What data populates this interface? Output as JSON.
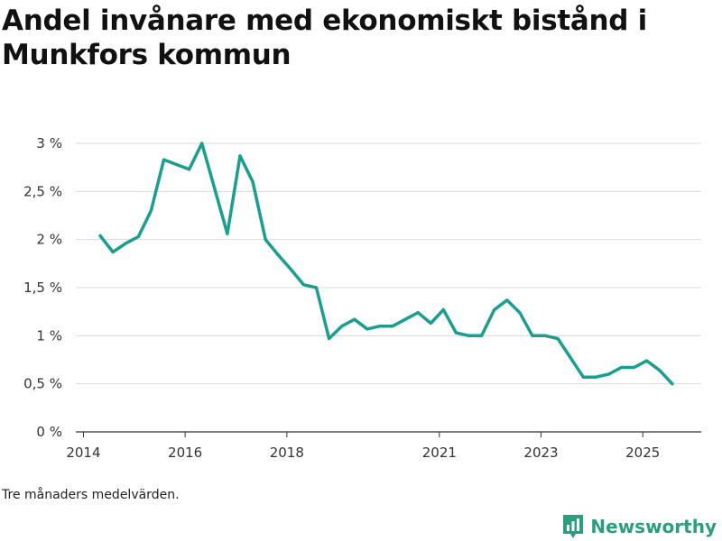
{
  "title": "Andel invånare med ekonomiskt bistånd i Munkfors kommun",
  "footnote": "Tre månaders medelvärden.",
  "brand": {
    "name": "Newsworthy",
    "icon": "newsworthy-logo-icon",
    "color": "#2a9f7f"
  },
  "colors": {
    "line": "#1a9e8f",
    "grid": "#d9d9d9",
    "axis": "#333333",
    "tick_text": "#333333"
  },
  "chart_data": {
    "type": "line",
    "title": "Andel invånare med ekonomiskt bistånd i Munkfors kommun",
    "xlabel": "",
    "ylabel": "",
    "xlim": [
      2013.85,
      2026.15
    ],
    "ylim": [
      0,
      3
    ],
    "grid": true,
    "y_ticks": [
      {
        "value": 0,
        "label": "0 %"
      },
      {
        "value": 0.5,
        "label": "0,5 %"
      },
      {
        "value": 1,
        "label": "1 %"
      },
      {
        "value": 1.5,
        "label": "1,5 %"
      },
      {
        "value": 2,
        "label": "2 %"
      },
      {
        "value": 2.5,
        "label": "2,5 %"
      },
      {
        "value": 3,
        "label": "3 %"
      }
    ],
    "x_ticks": [
      {
        "value": 2014,
        "label": "2014"
      },
      {
        "value": 2016,
        "label": "2016"
      },
      {
        "value": 2018,
        "label": "2018"
      },
      {
        "value": 2021,
        "label": "2021"
      },
      {
        "value": 2023,
        "label": "2023"
      },
      {
        "value": 2025,
        "label": "2025"
      }
    ],
    "series": [
      {
        "name": "Andel invånare med ekonomiskt bistånd",
        "x": [
          2014.33,
          2014.58,
          2014.83,
          2015.08,
          2015.33,
          2015.58,
          2015.83,
          2016.08,
          2016.33,
          2016.58,
          2016.83,
          2017.08,
          2017.33,
          2017.58,
          2017.83,
          2018.08,
          2018.33,
          2018.58,
          2018.83,
          2019.08,
          2019.33,
          2019.58,
          2019.83,
          2020.08,
          2020.33,
          2020.58,
          2020.83,
          2021.08,
          2021.33,
          2021.58,
          2021.83,
          2022.08,
          2022.33,
          2022.58,
          2022.83,
          2023.08,
          2023.33,
          2023.58,
          2023.83,
          2024.08,
          2024.33,
          2024.58,
          2024.83,
          2025.08,
          2025.33,
          2025.58
        ],
        "values": [
          2.04,
          1.87,
          1.96,
          2.03,
          2.3,
          2.83,
          2.78,
          2.73,
          3.0,
          2.53,
          2.06,
          2.87,
          2.6,
          2.0,
          1.84,
          1.69,
          1.53,
          1.5,
          0.97,
          1.1,
          1.17,
          1.07,
          1.1,
          1.1,
          1.17,
          1.24,
          1.13,
          1.27,
          1.03,
          1.0,
          1.0,
          1.27,
          1.37,
          1.24,
          1.0,
          1.0,
          0.97,
          0.77,
          0.57,
          0.57,
          0.6,
          0.67,
          0.67,
          0.74,
          0.64,
          0.5
        ]
      }
    ]
  }
}
